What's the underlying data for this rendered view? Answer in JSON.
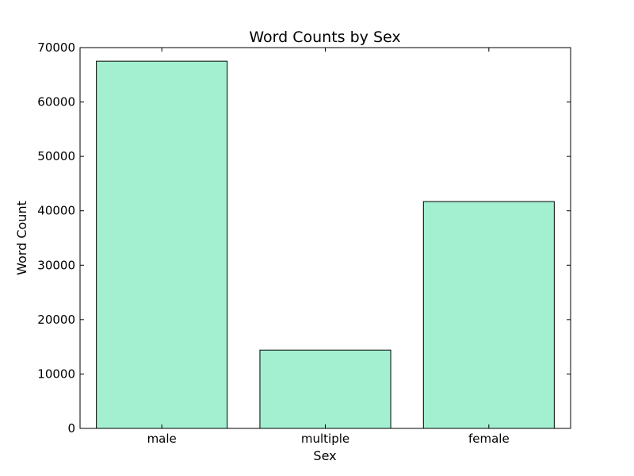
{
  "chart_data": {
    "type": "bar",
    "title": "Word Counts by Sex",
    "xlabel": "Sex",
    "ylabel": "Word Count",
    "categories": [
      "male",
      "multiple",
      "female"
    ],
    "values": [
      67500,
      14400,
      41700
    ],
    "ylim": [
      0,
      70000
    ],
    "yticks": [
      0,
      10000,
      20000,
      30000,
      40000,
      50000,
      60000,
      70000
    ],
    "ytick_labels": [
      "0",
      "10000",
      "20000",
      "30000",
      "40000",
      "50000",
      "60000",
      "70000"
    ],
    "bar_color": "#a3f0d1",
    "edge_color": "#000000",
    "grid": false,
    "legend": "none"
  }
}
